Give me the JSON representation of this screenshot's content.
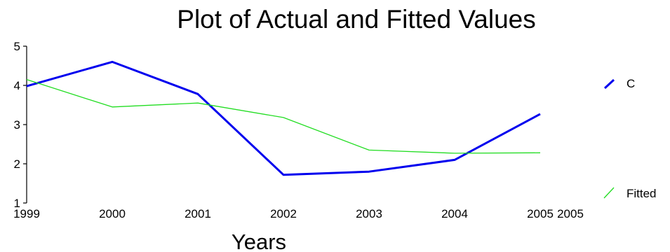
{
  "chart_data": {
    "type": "line",
    "title": "Plot of Actual and Fitted Values",
    "xlabel": "Years",
    "ylabel": "",
    "x": [
      1999,
      2000,
      2001,
      2002,
      2003,
      2004,
      2005
    ],
    "x_tick_labels": [
      "1999",
      "2000",
      "2001",
      "2002",
      "2003",
      "2004",
      "2005"
    ],
    "extra_x_tick_label": "2005",
    "y_ticks": [
      "1",
      "2",
      "3",
      "4",
      "5"
    ],
    "ylim": [
      1,
      5
    ],
    "xlim": [
      1999,
      2005
    ],
    "grid": false,
    "legend_position": "right",
    "series": [
      {
        "name": "C",
        "color": "#0000ee",
        "values": [
          3.98,
          4.6,
          3.78,
          1.72,
          1.8,
          2.1,
          3.27
        ]
      },
      {
        "name": "Fitted",
        "color": "#22dd22",
        "values": [
          4.15,
          3.45,
          3.55,
          3.18,
          2.35,
          2.27,
          2.28
        ]
      }
    ]
  }
}
